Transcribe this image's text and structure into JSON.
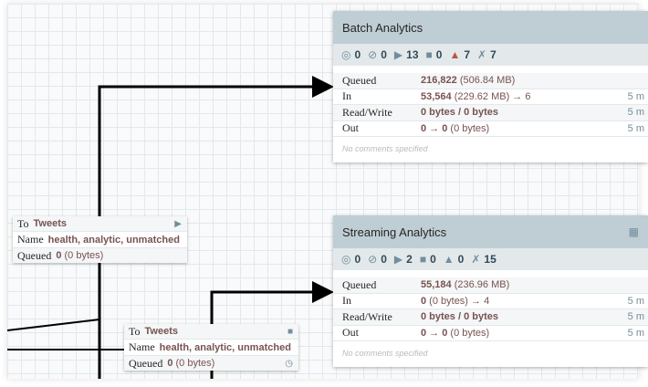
{
  "groups": [
    {
      "name": "Batch Analytics",
      "stats": {
        "transmitting": "0",
        "not_transmitting": "0",
        "running": "13",
        "stopped": "0",
        "invalid": "7",
        "disabled": "7"
      },
      "rows": [
        {
          "label": "Queued",
          "bold": "216,822",
          "rest": " (506.84 MB)",
          "time": ""
        },
        {
          "label": "In",
          "bold": "53,564",
          "rest": " (229.62 MB) → 6",
          "time": "5 m"
        },
        {
          "label": "Read/Write",
          "bold": "0 bytes / 0 bytes",
          "rest": "",
          "time": "5 m"
        },
        {
          "label": "Out",
          "bold": "0 → 0",
          "rest": " (0 bytes)",
          "time": "5 m"
        }
      ],
      "comments": "No comments specified",
      "invalid_color": "#ba554a"
    },
    {
      "name": "Streaming Analytics",
      "stats": {
        "transmitting": "0",
        "not_transmitting": "0",
        "running": "2",
        "stopped": "0",
        "invalid": "0",
        "disabled": "15"
      },
      "rows": [
        {
          "label": "Queued",
          "bold": "55,184",
          "rest": " (236.96 MB)",
          "time": ""
        },
        {
          "label": "In",
          "bold": "0",
          "rest": " (0 bytes) → 4",
          "time": "5 m"
        },
        {
          "label": "Read/Write",
          "bold": "0 bytes / 0 bytes",
          "rest": "",
          "time": "5 m"
        },
        {
          "label": "Out",
          "bold": "0 → 0",
          "rest": " (0 bytes)",
          "time": "5 m"
        }
      ],
      "comments": "No comments specified",
      "invalid_color": "#728e9b"
    }
  ],
  "connections": [
    {
      "to_label": "To",
      "to": "Tweets",
      "name_label": "Name",
      "name": "health, analytic, unmatched",
      "queued_label": "Queued",
      "queued_bold": "0",
      "queued_rest": "(0 bytes)",
      "status_icon": "play-icon"
    },
    {
      "to_label": "To",
      "to": "Tweets",
      "name_label": "Name",
      "name": "health, analytic, unmatched",
      "queued_label": "Queued",
      "queued_bold": "0",
      "queued_rest": "(0 bytes)",
      "status_icon": "stop-icon"
    }
  ]
}
